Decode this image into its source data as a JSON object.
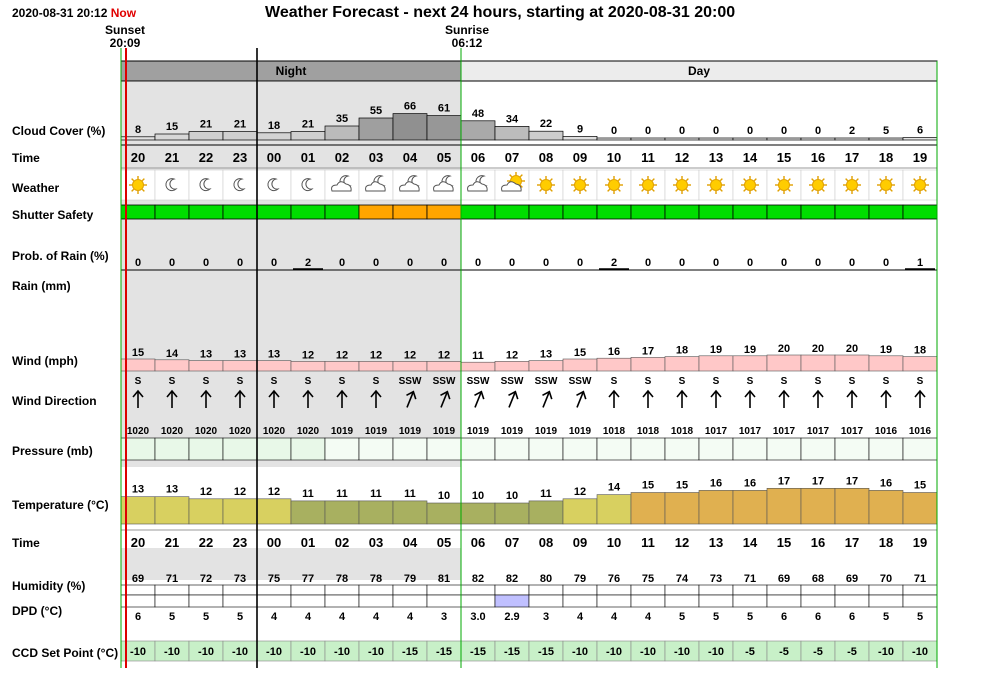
{
  "header": {
    "timestamp": "2020-08-31 20:12",
    "now_label": "Now",
    "title": "Weather Forecast - next 24 hours, starting at 2020-08-31 20:00"
  },
  "sunset": {
    "label": "Sunset",
    "time": "20:09"
  },
  "sunrise": {
    "label": "Sunrise",
    "time": "06:12"
  },
  "periods": {
    "night": "Night",
    "day": "Day"
  },
  "labels": {
    "cloud": "Cloud Cover (%)",
    "time": "Time",
    "weather": "Weather",
    "shutter": "Shutter Safety",
    "rain_prob": "Prob. of Rain (%)",
    "rain": "Rain (mm)",
    "wind": "Wind (mph)",
    "wind_dir": "Wind Direction",
    "pressure": "Pressure (mb)",
    "temp": "Temperature (°C)",
    "time2": "Time",
    "humidity": "Humidity (%)",
    "dpd": "DPD (°C)",
    "ccd": "CCD Set Point (°C)"
  },
  "hours": [
    "20",
    "21",
    "22",
    "23",
    "00",
    "01",
    "02",
    "03",
    "04",
    "05",
    "06",
    "07",
    "08",
    "09",
    "10",
    "11",
    "12",
    "13",
    "14",
    "15",
    "16",
    "17",
    "18",
    "19"
  ],
  "cloud_cover": [
    8,
    15,
    21,
    21,
    18,
    21,
    35,
    55,
    66,
    61,
    48,
    34,
    22,
    9,
    0,
    0,
    0,
    0,
    0,
    0,
    0,
    2,
    5,
    6
  ],
  "weather_icons": [
    "sun-icon",
    "moon-icon",
    "moon-icon",
    "moon-icon",
    "moon-icon",
    "moon-icon",
    "moon-cloud-icon",
    "moon-cloud-icon",
    "moon-cloud-icon",
    "moon-cloud-icon",
    "moon-cloud-icon",
    "sun-cloud-icon",
    "sun-icon",
    "sun-icon",
    "sun-icon",
    "sun-icon",
    "sun-icon",
    "sun-icon",
    "sun-icon",
    "sun-icon",
    "sun-icon",
    "sun-icon",
    "sun-icon",
    "sun-icon"
  ],
  "shutter_safety": [
    "safe",
    "safe",
    "safe",
    "safe",
    "safe",
    "safe",
    "safe",
    "caution",
    "caution",
    "caution",
    "safe",
    "safe",
    "safe",
    "safe",
    "safe",
    "safe",
    "safe",
    "safe",
    "safe",
    "safe",
    "safe",
    "safe",
    "safe",
    "safe"
  ],
  "shutter_colors": {
    "safe": "#00dd00",
    "caution": "#ffa500"
  },
  "rain_prob": [
    0,
    0,
    0,
    0,
    0,
    2,
    0,
    0,
    0,
    0,
    0,
    0,
    0,
    0,
    2,
    0,
    0,
    0,
    0,
    0,
    0,
    0,
    0,
    1
  ],
  "wind_speed": [
    15,
    14,
    13,
    13,
    13,
    12,
    12,
    12,
    12,
    12,
    11,
    12,
    13,
    15,
    16,
    17,
    18,
    19,
    19,
    20,
    20,
    20,
    19,
    18
  ],
  "wind_dir": [
    "S",
    "S",
    "S",
    "S",
    "S",
    "S",
    "S",
    "S",
    "SSW",
    "SSW",
    "SSW",
    "SSW",
    "SSW",
    "SSW",
    "S",
    "S",
    "S",
    "S",
    "S",
    "S",
    "S",
    "S",
    "S",
    "S"
  ],
  "pressure": [
    1020,
    1020,
    1020,
    1020,
    1020,
    1020,
    1019,
    1019,
    1019,
    1019,
    1019,
    1019,
    1019,
    1019,
    1018,
    1018,
    1018,
    1017,
    1017,
    1017,
    1017,
    1017,
    1016,
    1016
  ],
  "temperature": [
    13,
    13,
    12,
    12,
    12,
    11,
    11,
    11,
    11,
    10,
    10,
    10,
    11,
    12,
    14,
    15,
    15,
    16,
    16,
    17,
    17,
    17,
    16,
    15
  ],
  "humidity": [
    69,
    71,
    72,
    73,
    75,
    77,
    78,
    78,
    79,
    81,
    82,
    82,
    80,
    79,
    76,
    75,
    74,
    73,
    71,
    69,
    68,
    69,
    70,
    71
  ],
  "dpd": [
    "6",
    "5",
    "5",
    "5",
    "4",
    "4",
    "4",
    "4",
    "4",
    "3",
    "3.0",
    "2.9",
    "3",
    "4",
    "4",
    "4",
    "5",
    "5",
    "5",
    "6",
    "6",
    "6",
    "5",
    "5"
  ],
  "ccd_set_point": [
    -10,
    -10,
    -10,
    -10,
    -10,
    -10,
    -10,
    -10,
    -15,
    -15,
    -15,
    -15,
    -15,
    -10,
    -10,
    -10,
    -10,
    -10,
    -5,
    -5,
    -5,
    -5,
    -10,
    -10
  ],
  "colors": {
    "night_shade": "#e3e3e3",
    "night_header": "#a0a0a0",
    "now_line": "#dd0000",
    "sun": "#ffcc00",
    "wind_bar": "#ffc8c8",
    "ccd_bar": "#c8f0c8",
    "dpd_low": "#c0c0ff"
  }
}
